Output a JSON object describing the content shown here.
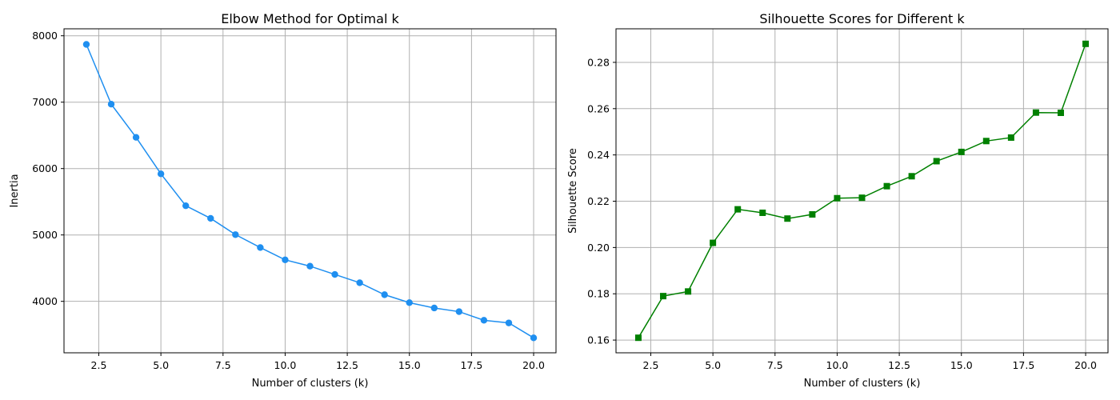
{
  "chart_data": [
    {
      "type": "line",
      "title": "Elbow Method for Optimal k",
      "xlabel": "Number of clusters (k)",
      "ylabel": "Inertia",
      "xlim": [
        1.1,
        20.9
      ],
      "ylim": [
        3225,
        8105
      ],
      "xticks": [
        2.5,
        5.0,
        7.5,
        10.0,
        12.5,
        15.0,
        17.5,
        20.0
      ],
      "yticks": [
        4000,
        5000,
        6000,
        7000,
        8000
      ],
      "grid": true,
      "marker": "circle",
      "color": "#1f8ff0",
      "x": [
        2,
        3,
        4,
        5,
        6,
        7,
        8,
        9,
        10,
        11,
        12,
        13,
        14,
        15,
        16,
        17,
        18,
        19,
        20
      ],
      "y": [
        7870,
        6970,
        6470,
        5920,
        5440,
        5250,
        5005,
        4810,
        4625,
        4530,
        4405,
        4280,
        4100,
        3980,
        3900,
        3845,
        3715,
        3675,
        3450
      ]
    },
    {
      "type": "line",
      "title": "Silhouette Scores for Different k",
      "xlabel": "Number of clusters (k)",
      "ylabel": "Silhouette Score",
      "xlim": [
        1.1,
        20.9
      ],
      "ylim": [
        0.1545,
        0.2945
      ],
      "xticks": [
        2.5,
        5.0,
        7.5,
        10.0,
        12.5,
        15.0,
        17.5,
        20.0
      ],
      "yticks": [
        0.16,
        0.18,
        0.2,
        0.22,
        0.24,
        0.26,
        0.28
      ],
      "grid": true,
      "marker": "square",
      "color": "#008000",
      "x": [
        2,
        3,
        4,
        5,
        6,
        7,
        8,
        9,
        10,
        11,
        12,
        13,
        14,
        15,
        16,
        17,
        18,
        19,
        20
      ],
      "y": [
        0.161,
        0.179,
        0.181,
        0.202,
        0.2165,
        0.215,
        0.2125,
        0.2143,
        0.2213,
        0.2215,
        0.2265,
        0.2308,
        0.2373,
        0.2413,
        0.246,
        0.2475,
        0.2583,
        0.2582,
        0.288
      ]
    }
  ]
}
